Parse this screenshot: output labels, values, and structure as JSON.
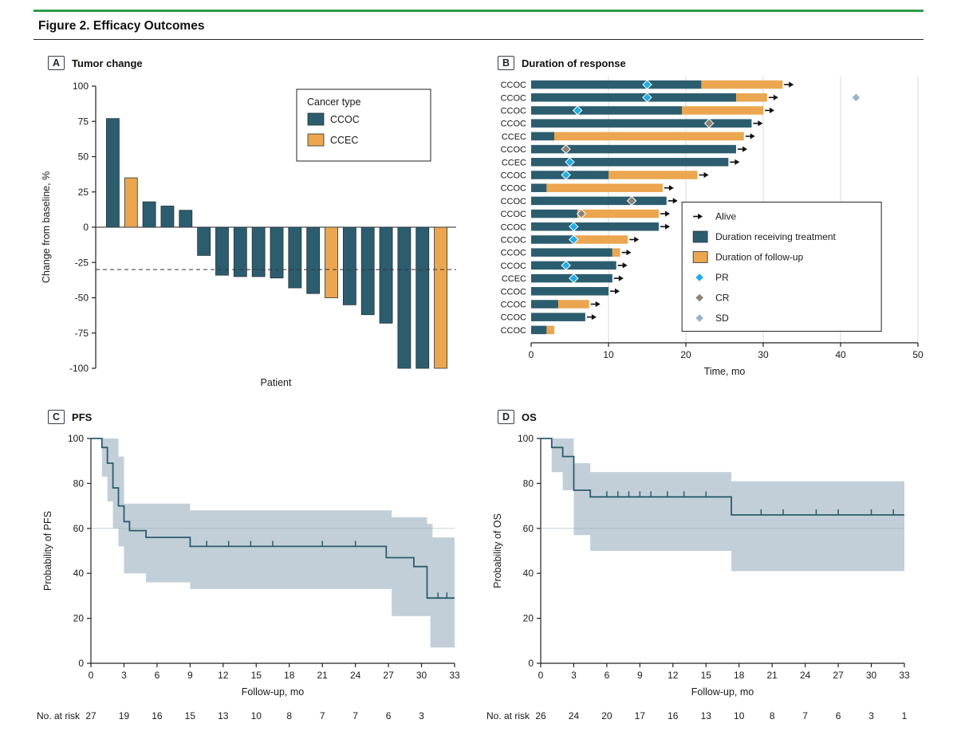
{
  "figure": {
    "title": "Figure 2. Efficacy Outcomes"
  },
  "panels": {
    "a": {
      "letter": "A",
      "title": "Tumor change"
    },
    "b": {
      "letter": "B",
      "title": "Duration of response"
    },
    "c": {
      "letter": "C",
      "title": "PFS"
    },
    "d": {
      "letter": "D",
      "title": "OS"
    }
  },
  "colors": {
    "green_rule": "#2E9C49",
    "teal": "#2C5D6E",
    "orange": "#EBA64F",
    "band": "#C2CFD9",
    "km_line": "#2B5C6B",
    "pr": "#1FAEE5",
    "cr": "#8C8374",
    "sd": "#9BB3C6",
    "axis": "#222222",
    "grid": "#D9D9D9"
  },
  "chart_data": [
    {
      "id": "tumor-change-waterfall",
      "type": "bar",
      "title": "Tumor change",
      "xlabel": "Patient",
      "ylabel": "Change from baseline, %",
      "ylim": [
        -100,
        100
      ],
      "yticks": [
        100,
        75,
        50,
        25,
        0,
        -25,
        -50,
        -75,
        -100
      ],
      "reference_line": -30,
      "legend": {
        "title": "Cancer type",
        "entries": [
          {
            "label": "CCOC"
          },
          {
            "label": "CCEC"
          }
        ]
      },
      "bars": [
        {
          "value": 77,
          "type": "CCOC"
        },
        {
          "value": 35,
          "type": "CCEC"
        },
        {
          "value": 18,
          "type": "CCOC"
        },
        {
          "value": 15,
          "type": "CCOC"
        },
        {
          "value": 12,
          "type": "CCOC"
        },
        {
          "value": -20,
          "type": "CCOC"
        },
        {
          "value": -34,
          "type": "CCOC"
        },
        {
          "value": -35,
          "type": "CCOC"
        },
        {
          "value": -35,
          "type": "CCOC"
        },
        {
          "value": -36,
          "type": "CCOC"
        },
        {
          "value": -43,
          "type": "CCOC"
        },
        {
          "value": -47,
          "type": "CCOC"
        },
        {
          "value": -50,
          "type": "CCEC"
        },
        {
          "value": -55,
          "type": "CCOC"
        },
        {
          "value": -62,
          "type": "CCOC"
        },
        {
          "value": -68,
          "type": "CCOC"
        },
        {
          "value": -100,
          "type": "CCOC"
        },
        {
          "value": -100,
          "type": "CCOC"
        },
        {
          "value": -100,
          "type": "CCEC"
        }
      ]
    },
    {
      "id": "duration-of-response-swimmer",
      "type": "swimmer",
      "title": "Duration of response",
      "xlabel": "Time, mo",
      "xlim": [
        0,
        50
      ],
      "xticks": [
        0,
        10,
        20,
        30,
        40,
        50
      ],
      "legend": [
        {
          "symbol": "arrow",
          "label": "Alive"
        },
        {
          "symbol": "teal-rect",
          "label": "Duration receiving treatment"
        },
        {
          "symbol": "orange-rect",
          "label": "Duration of follow-up"
        },
        {
          "symbol": "diamond-pr",
          "label": "PR"
        },
        {
          "symbol": "diamond-cr",
          "label": "CR"
        },
        {
          "symbol": "diamond-sd",
          "label": "SD"
        }
      ],
      "rows": [
        {
          "label": "CCOC",
          "treatment": 22,
          "followup": 32.5,
          "alive": true,
          "markers": [
            {
              "type": "PR",
              "t": 15
            }
          ]
        },
        {
          "label": "CCOC",
          "treatment": 26.5,
          "followup": 30.5,
          "alive": true,
          "markers": [
            {
              "type": "PR",
              "t": 15
            },
            {
              "type": "SD",
              "t": 42
            }
          ]
        },
        {
          "label": "CCOC",
          "treatment": 19.5,
          "followup": 30,
          "alive": true,
          "markers": [
            {
              "type": "PR",
              "t": 6
            }
          ]
        },
        {
          "label": "CCOC",
          "treatment": 28.5,
          "followup": null,
          "alive": true,
          "markers": [
            {
              "type": "CR",
              "t": 23
            }
          ]
        },
        {
          "label": "CCEC",
          "treatment": 3,
          "followup": 27.5,
          "alive": true,
          "markers": []
        },
        {
          "label": "CCOC",
          "treatment": 26.5,
          "followup": null,
          "alive": true,
          "markers": [
            {
              "type": "CR",
              "t": 4.5
            }
          ]
        },
        {
          "label": "CCEC",
          "treatment": 25.5,
          "followup": null,
          "alive": true,
          "markers": [
            {
              "type": "PR",
              "t": 5
            }
          ]
        },
        {
          "label": "CCOC",
          "treatment": 10,
          "followup": 21.5,
          "alive": true,
          "markers": [
            {
              "type": "PR",
              "t": 4.5
            }
          ]
        },
        {
          "label": "CCOC",
          "treatment": 2,
          "followup": 17,
          "alive": true,
          "markers": []
        },
        {
          "label": "CCOC",
          "treatment": 17.5,
          "followup": null,
          "alive": true,
          "markers": [
            {
              "type": "CR",
              "t": 13
            }
          ]
        },
        {
          "label": "CCOC",
          "treatment": 6,
          "followup": 16.5,
          "alive": true,
          "markers": [
            {
              "type": "CR",
              "t": 6.5
            }
          ]
        },
        {
          "label": "CCOC",
          "treatment": 16.5,
          "followup": null,
          "alive": true,
          "markers": [
            {
              "type": "PR",
              "t": 5.5
            }
          ]
        },
        {
          "label": "CCOC",
          "treatment": 5.5,
          "followup": 12.5,
          "alive": true,
          "markers": [
            {
              "type": "PR",
              "t": 5.5
            }
          ]
        },
        {
          "label": "CCOC",
          "treatment": 10.5,
          "followup": 11.5,
          "alive": true,
          "markers": []
        },
        {
          "label": "CCOC",
          "treatment": 11,
          "followup": null,
          "alive": true,
          "markers": [
            {
              "type": "PR",
              "t": 4.5
            }
          ]
        },
        {
          "label": "CCEC",
          "treatment": 10.5,
          "followup": null,
          "alive": true,
          "markers": [
            {
              "type": "PR",
              "t": 5.5
            }
          ]
        },
        {
          "label": "CCOC",
          "treatment": 10,
          "followup": null,
          "alive": true,
          "markers": []
        },
        {
          "label": "CCOC",
          "treatment": 3.5,
          "followup": 7.5,
          "alive": true,
          "markers": []
        },
        {
          "label": "CCOC",
          "treatment": 7,
          "followup": null,
          "alive": true,
          "markers": []
        },
        {
          "label": "CCOC",
          "treatment": 2,
          "followup": 3,
          "alive": false,
          "markers": []
        }
      ]
    },
    {
      "id": "pfs-km",
      "type": "line",
      "title": "PFS",
      "ylabel": "Probability of PFS",
      "xlabel": "Follow-up, mo",
      "xlim": [
        0,
        33
      ],
      "ylim": [
        0,
        100
      ],
      "xticks": [
        0,
        3,
        6,
        9,
        12,
        15,
        18,
        21,
        24,
        27,
        30,
        33
      ],
      "yticks": [
        0,
        20,
        40,
        60,
        80,
        100
      ],
      "steps": [
        [
          0,
          100
        ],
        [
          1,
          96
        ],
        [
          1.5,
          89
        ],
        [
          2,
          78
        ],
        [
          2.5,
          70
        ],
        [
          3,
          63
        ],
        [
          3.5,
          59
        ],
        [
          5,
          56
        ],
        [
          9,
          52
        ],
        [
          26.8,
          47
        ],
        [
          29.3,
          43
        ],
        [
          30.5,
          29
        ],
        [
          33,
          29
        ]
      ],
      "censor_ticks": [
        10.5,
        12.5,
        14.5,
        16.5,
        21,
        24,
        31.5,
        32.3
      ],
      "ci_upper": [
        [
          0,
          100
        ],
        [
          2.5,
          92
        ],
        [
          3,
          71
        ],
        [
          9,
          68
        ],
        [
          27.3,
          65
        ],
        [
          30.5,
          62
        ],
        [
          31,
          56
        ],
        [
          33,
          56
        ]
      ],
      "ci_lower": [
        [
          0,
          100
        ],
        [
          1,
          83
        ],
        [
          1.5,
          72
        ],
        [
          2,
          60
        ],
        [
          2.5,
          52
        ],
        [
          3,
          40
        ],
        [
          5,
          36
        ],
        [
          9,
          33
        ],
        [
          27.3,
          21
        ],
        [
          30.8,
          7
        ],
        [
          33,
          7
        ]
      ],
      "at_risk": {
        "label": "No. at risk",
        "values": [
          27,
          19,
          16,
          15,
          13,
          10,
          8,
          7,
          7,
          6,
          3
        ]
      }
    },
    {
      "id": "os-km",
      "type": "line",
      "title": "OS",
      "ylabel": "Probability of OS",
      "xlabel": "Follow-up, mo",
      "xlim": [
        0,
        33
      ],
      "ylim": [
        0,
        100
      ],
      "xticks": [
        0,
        3,
        6,
        9,
        12,
        15,
        18,
        21,
        24,
        27,
        30,
        33
      ],
      "yticks": [
        0,
        20,
        40,
        60,
        80,
        100
      ],
      "steps": [
        [
          0,
          100
        ],
        [
          1,
          96
        ],
        [
          2,
          92
        ],
        [
          3,
          77
        ],
        [
          4.5,
          74
        ],
        [
          17.3,
          66
        ],
        [
          33,
          66
        ]
      ],
      "censor_ticks": [
        6,
        7,
        8,
        9,
        10,
        11.5,
        13,
        15,
        20,
        22,
        25,
        27,
        30,
        32
      ],
      "ci_upper": [
        [
          0,
          100
        ],
        [
          3,
          89
        ],
        [
          4.5,
          85
        ],
        [
          17.3,
          81
        ],
        [
          33,
          81
        ]
      ],
      "ci_lower": [
        [
          0,
          100
        ],
        [
          1,
          85
        ],
        [
          2,
          77
        ],
        [
          3,
          57
        ],
        [
          4.5,
          50
        ],
        [
          17.3,
          41
        ],
        [
          33,
          41
        ]
      ],
      "at_risk": {
        "label": "No. at risk",
        "values": [
          26,
          24,
          20,
          17,
          16,
          13,
          10,
          8,
          7,
          6,
          3,
          1
        ]
      }
    }
  ]
}
